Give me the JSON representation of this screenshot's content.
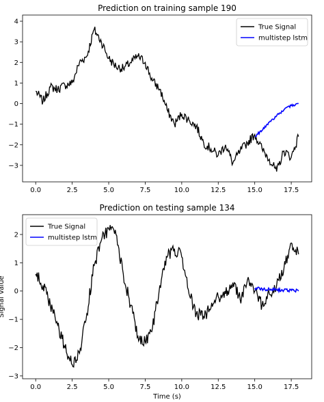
{
  "chart_data": [
    {
      "type": "line",
      "title": "Prediction on training sample 190",
      "xlabel": "",
      "ylabel": "",
      "xlim": [
        -0.9,
        18.9
      ],
      "ylim": [
        -3.8,
        4.3
      ],
      "xticks": [
        "0.0",
        "2.5",
        "5.0",
        "7.5",
        "10.0",
        "12.5",
        "15.0",
        "17.5"
      ],
      "xtick_values": [
        0,
        2.5,
        5,
        7.5,
        10,
        12.5,
        15,
        17.5
      ],
      "yticks": [
        "−3",
        "−2",
        "−1",
        "0",
        "1",
        "2",
        "3",
        "4"
      ],
      "ytick_values": [
        -3,
        -2,
        -1,
        0,
        1,
        2,
        3,
        4
      ],
      "legend": "top-right",
      "grid": false,
      "series": [
        {
          "name": "True Signal",
          "color": "#000000",
          "x": [
            0,
            0.5,
            1,
            1.5,
            2,
            2.5,
            3,
            3.5,
            4,
            4.5,
            5,
            5.5,
            6,
            6.5,
            7,
            7.5,
            8,
            8.5,
            9,
            9.5,
            10,
            10.5,
            11,
            11.5,
            12,
            12.5,
            13,
            13.5,
            14,
            14.5,
            15,
            15.5,
            16,
            16.5,
            17,
            17.5,
            18
          ],
          "y": [
            0.6,
            0.1,
            0.8,
            0.7,
            0.9,
            1.0,
            2.0,
            2.3,
            3.6,
            3.0,
            2.2,
            1.8,
            1.7,
            2.0,
            2.3,
            2.0,
            1.1,
            0.7,
            -0.3,
            -1.0,
            -0.5,
            -0.8,
            -1.1,
            -1.9,
            -2.2,
            -2.5,
            -2.0,
            -2.9,
            -2.3,
            -1.9,
            -1.5,
            -2.2,
            -2.7,
            -3.3,
            -2.3,
            -2.6,
            -1.6
          ]
        },
        {
          "name": "multistep lstm",
          "color": "#0000ff",
          "x": [
            15,
            15.5,
            16,
            16.5,
            17,
            17.5,
            18
          ],
          "y": [
            -1.6,
            -1.3,
            -0.9,
            -0.6,
            -0.3,
            -0.1,
            0.0
          ]
        }
      ]
    },
    {
      "type": "line",
      "title": "Prediction on testing sample 134",
      "xlabel": "Time (s)",
      "ylabel": "Signal Value",
      "xlim": [
        -0.9,
        18.9
      ],
      "ylim": [
        -3.1,
        2.7
      ],
      "xticks": [
        "0.0",
        "2.5",
        "5.0",
        "7.5",
        "10.0",
        "12.5",
        "15.0",
        "17.5"
      ],
      "xtick_values": [
        0,
        2.5,
        5,
        7.5,
        10,
        12.5,
        15,
        17.5
      ],
      "yticks": [
        "−3",
        "−2",
        "−1",
        "0",
        "1",
        "2"
      ],
      "ytick_values": [
        -3,
        -2,
        -1,
        0,
        1,
        2
      ],
      "legend": "top-left",
      "grid": false,
      "series": [
        {
          "name": "True Signal",
          "color": "#000000",
          "x": [
            0,
            0.5,
            1,
            1.5,
            2,
            2.5,
            3,
            3.5,
            4,
            4.5,
            5,
            5.5,
            6,
            6.5,
            7,
            7.5,
            8,
            8.5,
            9,
            9.5,
            10,
            10.5,
            11,
            11.5,
            12,
            12.5,
            13,
            13.5,
            14,
            14.5,
            15,
            15.5,
            16,
            16.5,
            17,
            17.5,
            18
          ],
          "y": [
            0.6,
            0.2,
            -0.5,
            -1.2,
            -2.0,
            -2.6,
            -2.2,
            -0.8,
            0.9,
            1.8,
            2.2,
            2.0,
            0.6,
            -0.5,
            -1.6,
            -1.8,
            -1.3,
            0.2,
            1.2,
            1.5,
            1.2,
            -0.1,
            -0.8,
            -0.9,
            -0.6,
            -0.2,
            -0.1,
            0.3,
            -0.3,
            0.4,
            0.0,
            -0.5,
            -0.1,
            0.2,
            0.8,
            1.7,
            1.3
          ]
        },
        {
          "name": "multistep lstm",
          "color": "#0000ff",
          "x": [
            15,
            15.5,
            16,
            16.5,
            17,
            17.5,
            18
          ],
          "y": [
            0.1,
            0.08,
            0.06,
            0.05,
            0.03,
            0.02,
            0.0
          ]
        }
      ]
    }
  ]
}
